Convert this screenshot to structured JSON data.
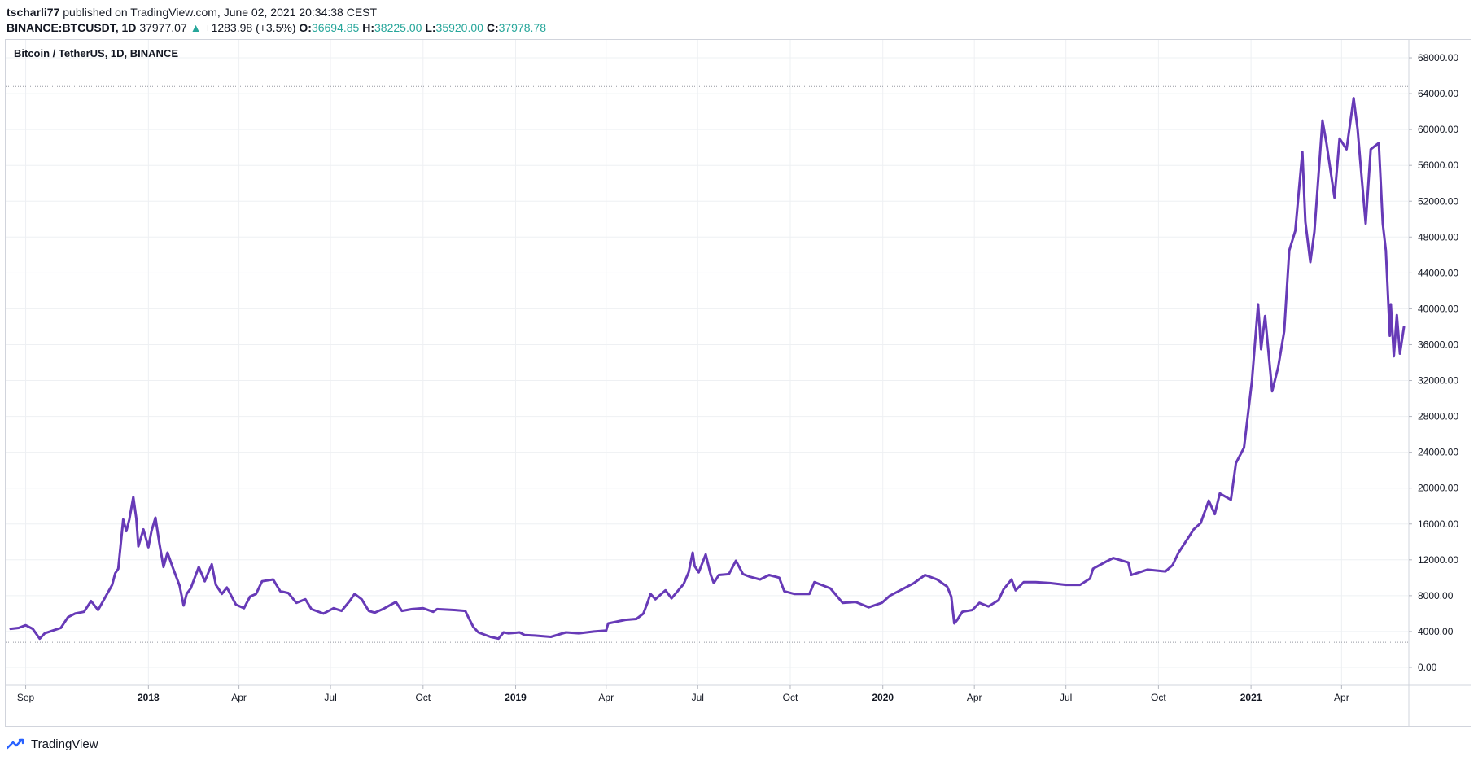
{
  "header": {
    "author": "tscharli77",
    "published_text": "published on TradingView.com, June 02, 2021 20:34:38 CEST",
    "symbol": "BINANCE:BTCUSDT, 1D",
    "price": "37977.07",
    "up_arrow": "▲",
    "change": "+1283.98 (+3.5%)",
    "o_label": "O:",
    "o_value": "36694.85",
    "h_label": "H:",
    "h_value": "38225.00",
    "l_label": "L:",
    "l_value": "35920.00",
    "c_label": "C:",
    "c_value": "37978.78"
  },
  "footer": {
    "brand": "TradingView",
    "logo_icon": "tradingview-logo-icon"
  },
  "chart_data": {
    "type": "line",
    "title": "Bitcoin / TetherUS, 1D, BINANCE",
    "line_color": "#673ab7",
    "grid": true,
    "ylim": [
      -2000,
      70000
    ],
    "y_ticks": [
      "68000.00",
      "64000.00",
      "60000.00",
      "56000.00",
      "52000.00",
      "48000.00",
      "44000.00",
      "40000.00",
      "36000.00",
      "32000.00",
      "28000.00",
      "24000.00",
      "20000.00",
      "16000.00",
      "12000.00",
      "8000.00",
      "4000.00",
      "0.00"
    ],
    "x_ticks": [
      {
        "label": "Sep",
        "date": "2017-09-01",
        "bold": false
      },
      {
        "label": "2018",
        "date": "2018-01-01",
        "bold": true
      },
      {
        "label": "Apr",
        "date": "2018-04-01",
        "bold": false
      },
      {
        "label": "Jul",
        "date": "2018-07-01",
        "bold": false
      },
      {
        "label": "Oct",
        "date": "2018-10-01",
        "bold": false
      },
      {
        "label": "2019",
        "date": "2019-01-01",
        "bold": true
      },
      {
        "label": "Apr",
        "date": "2019-04-01",
        "bold": false
      },
      {
        "label": "Jul",
        "date": "2019-07-01",
        "bold": false
      },
      {
        "label": "Oct",
        "date": "2019-10-01",
        "bold": false
      },
      {
        "label": "2020",
        "date": "2020-01-01",
        "bold": true
      },
      {
        "label": "Apr",
        "date": "2020-04-01",
        "bold": false
      },
      {
        "label": "Jul",
        "date": "2020-07-01",
        "bold": false
      },
      {
        "label": "Oct",
        "date": "2020-10-01",
        "bold": false
      },
      {
        "label": "2021",
        "date": "2021-01-01",
        "bold": true
      },
      {
        "label": "Apr",
        "date": "2021-04-01",
        "bold": false
      }
    ],
    "x_range": [
      "2017-08-17",
      "2021-06-02"
    ],
    "high_line": 64800,
    "low_line": 2800,
    "series": [
      {
        "values": [
          [
            "2017-08-17",
            4300
          ],
          [
            "2017-08-25",
            4400
          ],
          [
            "2017-09-01",
            4700
          ],
          [
            "2017-09-08",
            4300
          ],
          [
            "2017-09-15",
            3200
          ],
          [
            "2017-09-20",
            3800
          ],
          [
            "2017-09-29",
            4150
          ],
          [
            "2017-10-06",
            4400
          ],
          [
            "2017-10-13",
            5600
          ],
          [
            "2017-10-20",
            6000
          ],
          [
            "2017-10-29",
            6200
          ],
          [
            "2017-11-05",
            7400
          ],
          [
            "2017-11-12",
            6400
          ],
          [
            "2017-11-20",
            8000
          ],
          [
            "2017-11-26",
            9200
          ],
          [
            "2017-11-29",
            10500
          ],
          [
            "2017-12-02",
            11000
          ],
          [
            "2017-12-07",
            16500
          ],
          [
            "2017-12-10",
            15200
          ],
          [
            "2017-12-13",
            16500
          ],
          [
            "2017-12-17",
            19000
          ],
          [
            "2017-12-20",
            16600
          ],
          [
            "2017-12-22",
            13500
          ],
          [
            "2017-12-27",
            15400
          ],
          [
            "2018-01-01",
            13400
          ],
          [
            "2018-01-04",
            15200
          ],
          [
            "2018-01-08",
            16700
          ],
          [
            "2018-01-12",
            13800
          ],
          [
            "2018-01-16",
            11200
          ],
          [
            "2018-01-20",
            12800
          ],
          [
            "2018-01-25",
            11200
          ],
          [
            "2018-02-01",
            9100
          ],
          [
            "2018-02-05",
            6900
          ],
          [
            "2018-02-08",
            8200
          ],
          [
            "2018-02-12",
            8800
          ],
          [
            "2018-02-20",
            11200
          ],
          [
            "2018-02-26",
            9600
          ],
          [
            "2018-03-05",
            11500
          ],
          [
            "2018-03-09",
            9200
          ],
          [
            "2018-03-15",
            8200
          ],
          [
            "2018-03-20",
            8900
          ],
          [
            "2018-03-29",
            7000
          ],
          [
            "2018-04-06",
            6600
          ],
          [
            "2018-04-12",
            7900
          ],
          [
            "2018-04-18",
            8200
          ],
          [
            "2018-04-24",
            9600
          ],
          [
            "2018-05-05",
            9800
          ],
          [
            "2018-05-12",
            8500
          ],
          [
            "2018-05-20",
            8300
          ],
          [
            "2018-05-28",
            7200
          ],
          [
            "2018-06-06",
            7600
          ],
          [
            "2018-06-12",
            6500
          ],
          [
            "2018-06-24",
            6000
          ],
          [
            "2018-07-04",
            6600
          ],
          [
            "2018-07-12",
            6300
          ],
          [
            "2018-07-20",
            7400
          ],
          [
            "2018-07-25",
            8200
          ],
          [
            "2018-08-01",
            7600
          ],
          [
            "2018-08-08",
            6300
          ],
          [
            "2018-08-14",
            6100
          ],
          [
            "2018-08-22",
            6500
          ],
          [
            "2018-09-04",
            7300
          ],
          [
            "2018-09-10",
            6300
          ],
          [
            "2018-09-20",
            6500
          ],
          [
            "2018-10-01",
            6600
          ],
          [
            "2018-10-11",
            6200
          ],
          [
            "2018-10-15",
            6500
          ],
          [
            "2018-11-01",
            6400
          ],
          [
            "2018-11-12",
            6300
          ],
          [
            "2018-11-15",
            5600
          ],
          [
            "2018-11-20",
            4500
          ],
          [
            "2018-11-25",
            3900
          ],
          [
            "2018-12-07",
            3400
          ],
          [
            "2018-12-15",
            3200
          ],
          [
            "2018-12-20",
            3900
          ],
          [
            "2018-12-25",
            3800
          ],
          [
            "2019-01-05",
            3900
          ],
          [
            "2019-01-10",
            3600
          ],
          [
            "2019-01-20",
            3550
          ],
          [
            "2019-02-05",
            3400
          ],
          [
            "2019-02-20",
            3900
          ],
          [
            "2019-03-05",
            3800
          ],
          [
            "2019-03-20",
            4000
          ],
          [
            "2019-04-01",
            4100
          ],
          [
            "2019-04-03",
            4900
          ],
          [
            "2019-04-20",
            5300
          ],
          [
            "2019-05-01",
            5400
          ],
          [
            "2019-05-08",
            6000
          ],
          [
            "2019-05-12",
            7200
          ],
          [
            "2019-05-15",
            8200
          ],
          [
            "2019-05-20",
            7600
          ],
          [
            "2019-05-30",
            8600
          ],
          [
            "2019-06-05",
            7700
          ],
          [
            "2019-06-17",
            9300
          ],
          [
            "2019-06-22",
            10600
          ],
          [
            "2019-06-26",
            12800
          ],
          [
            "2019-06-28",
            11300
          ],
          [
            "2019-07-02",
            10600
          ],
          [
            "2019-07-09",
            12600
          ],
          [
            "2019-07-14",
            10300
          ],
          [
            "2019-07-17",
            9400
          ],
          [
            "2019-07-22",
            10300
          ],
          [
            "2019-08-01",
            10400
          ],
          [
            "2019-08-08",
            11900
          ],
          [
            "2019-08-15",
            10400
          ],
          [
            "2019-08-22",
            10100
          ],
          [
            "2019-09-01",
            9800
          ],
          [
            "2019-09-10",
            10300
          ],
          [
            "2019-09-20",
            10000
          ],
          [
            "2019-09-25",
            8500
          ],
          [
            "2019-10-05",
            8200
          ],
          [
            "2019-10-20",
            8200
          ],
          [
            "2019-10-25",
            9500
          ],
          [
            "2019-11-01",
            9200
          ],
          [
            "2019-11-10",
            8800
          ],
          [
            "2019-11-22",
            7200
          ],
          [
            "2019-12-05",
            7300
          ],
          [
            "2019-12-18",
            6700
          ],
          [
            "2019-12-31",
            7200
          ],
          [
            "2020-01-08",
            8000
          ],
          [
            "2020-01-20",
            8700
          ],
          [
            "2020-02-01",
            9400
          ],
          [
            "2020-02-12",
            10300
          ],
          [
            "2020-02-24",
            9800
          ],
          [
            "2020-03-05",
            9000
          ],
          [
            "2020-03-09",
            7900
          ],
          [
            "2020-03-12",
            4900
          ],
          [
            "2020-03-15",
            5300
          ],
          [
            "2020-03-20",
            6200
          ],
          [
            "2020-03-30",
            6400
          ],
          [
            "2020-04-06",
            7200
          ],
          [
            "2020-04-15",
            6800
          ],
          [
            "2020-04-25",
            7500
          ],
          [
            "2020-04-30",
            8700
          ],
          [
            "2020-05-08",
            9800
          ],
          [
            "2020-05-12",
            8600
          ],
          [
            "2020-05-20",
            9500
          ],
          [
            "2020-06-01",
            9500
          ],
          [
            "2020-06-15",
            9400
          ],
          [
            "2020-07-01",
            9200
          ],
          [
            "2020-07-15",
            9200
          ],
          [
            "2020-07-25",
            9900
          ],
          [
            "2020-07-28",
            11000
          ],
          [
            "2020-08-10",
            11800
          ],
          [
            "2020-08-17",
            12200
          ],
          [
            "2020-09-01",
            11700
          ],
          [
            "2020-09-04",
            10300
          ],
          [
            "2020-09-20",
            10900
          ],
          [
            "2020-10-08",
            10700
          ],
          [
            "2020-10-15",
            11400
          ],
          [
            "2020-10-21",
            12800
          ],
          [
            "2020-11-05",
            15400
          ],
          [
            "2020-11-12",
            16100
          ],
          [
            "2020-11-20",
            18600
          ],
          [
            "2020-11-26",
            17100
          ],
          [
            "2020-12-01",
            19400
          ],
          [
            "2020-12-12",
            18700
          ],
          [
            "2020-12-17",
            22800
          ],
          [
            "2020-12-25",
            24500
          ],
          [
            "2021-01-02",
            32000
          ],
          [
            "2021-01-08",
            40500
          ],
          [
            "2021-01-11",
            35500
          ],
          [
            "2021-01-15",
            39200
          ],
          [
            "2021-01-22",
            30800
          ],
          [
            "2021-01-28",
            33500
          ],
          [
            "2021-02-03",
            37500
          ],
          [
            "2021-02-08",
            46500
          ],
          [
            "2021-02-14",
            48700
          ],
          [
            "2021-02-21",
            57500
          ],
          [
            "2021-02-24",
            49700
          ],
          [
            "2021-03-01",
            45200
          ],
          [
            "2021-03-05",
            48600
          ],
          [
            "2021-03-13",
            61000
          ],
          [
            "2021-03-17",
            58500
          ],
          [
            "2021-03-25",
            52400
          ],
          [
            "2021-03-30",
            59000
          ],
          [
            "2021-04-06",
            57800
          ],
          [
            "2021-04-13",
            63500
          ],
          [
            "2021-04-17",
            60000
          ],
          [
            "2021-04-20",
            56000
          ],
          [
            "2021-04-25",
            49500
          ],
          [
            "2021-04-30",
            57800
          ],
          [
            "2021-05-08",
            58500
          ],
          [
            "2021-05-12",
            49500
          ],
          [
            "2021-05-15",
            46500
          ],
          [
            "2021-05-19",
            37000
          ],
          [
            "2021-05-20",
            40500
          ],
          [
            "2021-05-23",
            34700
          ],
          [
            "2021-05-26",
            39300
          ],
          [
            "2021-05-29",
            35000
          ],
          [
            "2021-06-02",
            37978
          ]
        ]
      }
    ]
  }
}
